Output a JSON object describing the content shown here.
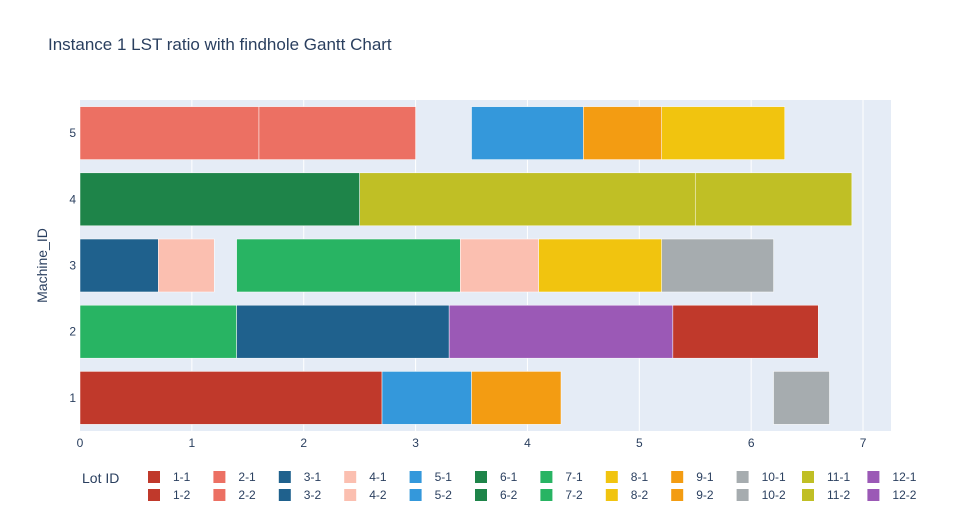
{
  "chart_data": {
    "type": "bar",
    "orientation": "horizontal",
    "title": "Instance 1 LST ratio with findhole Gantt Chart",
    "xlabel": "",
    "ylabel": "Machine_ID",
    "xlim": [
      0,
      7.25
    ],
    "x_ticks": [
      "0",
      "1",
      "2",
      "3",
      "4",
      "5",
      "6",
      "7"
    ],
    "y_categories": [
      "1",
      "2",
      "3",
      "4",
      "5"
    ],
    "grid": true,
    "legend_title": "Lot ID",
    "legend_position": "bottom",
    "colors": {
      "1": "#c0392b",
      "2": "#ec7063",
      "3": "#1f618d",
      "4": "#fbbfb0",
      "5": "#3498db",
      "6": "#1e8449",
      "7": "#28b463",
      "8": "#f1c40f",
      "9": "#f39c12",
      "10": "#a6acaf",
      "11": "#c0bf25",
      "12": "#9b59b6"
    },
    "legend": [
      "1-1",
      "1-2",
      "2-1",
      "2-2",
      "3-1",
      "3-2",
      "4-1",
      "4-2",
      "5-1",
      "5-2",
      "6-1",
      "6-2",
      "7-1",
      "7-2",
      "8-1",
      "8-2",
      "9-1",
      "9-2",
      "10-1",
      "10-2",
      "11-1",
      "11-2",
      "12-1",
      "12-2"
    ],
    "series": [
      {
        "machine": "1",
        "lot": "1-2",
        "start": 0,
        "end": 2.7
      },
      {
        "machine": "1",
        "lot": "5-1",
        "start": 2.7,
        "end": 3.5
      },
      {
        "machine": "1",
        "lot": "9-1",
        "start": 3.5,
        "end": 4.3
      },
      {
        "machine": "1",
        "lot": "10-2",
        "start": 6.2,
        "end": 6.7
      },
      {
        "machine": "2",
        "lot": "7-1",
        "start": 0,
        "end": 1.4
      },
      {
        "machine": "2",
        "lot": "3-2",
        "start": 1.4,
        "end": 3.3
      },
      {
        "machine": "2",
        "lot": "12-1",
        "start": 3.3,
        "end": 5.3
      },
      {
        "machine": "2",
        "lot": "1-1",
        "start": 5.3,
        "end": 6.6
      },
      {
        "machine": "3",
        "lot": "3-1",
        "start": 0,
        "end": 0.7
      },
      {
        "machine": "3",
        "lot": "4-1",
        "start": 0.7,
        "end": 1.2
      },
      {
        "machine": "3",
        "lot": "7-2",
        "start": 1.4,
        "end": 3.4
      },
      {
        "machine": "3",
        "lot": "4-2",
        "start": 3.4,
        "end": 4.1
      },
      {
        "machine": "3",
        "lot": "8-1",
        "start": 4.1,
        "end": 5.2
      },
      {
        "machine": "3",
        "lot": "10-1",
        "start": 5.2,
        "end": 6.2
      },
      {
        "machine": "4",
        "lot": "6-1",
        "start": 0,
        "end": 2.5
      },
      {
        "machine": "4",
        "lot": "11-1",
        "start": 2.5,
        "end": 5.5
      },
      {
        "machine": "4",
        "lot": "11-2",
        "start": 5.5,
        "end": 6.9
      },
      {
        "machine": "5",
        "lot": "2-1",
        "start": 0,
        "end": 1.6
      },
      {
        "machine": "5",
        "lot": "2-2",
        "start": 1.6,
        "end": 3.0
      },
      {
        "machine": "5",
        "lot": "5-2",
        "start": 3.5,
        "end": 4.5
      },
      {
        "machine": "5",
        "lot": "9-2",
        "start": 4.5,
        "end": 5.2
      },
      {
        "machine": "5",
        "lot": "8-2",
        "start": 5.2,
        "end": 6.3
      }
    ]
  }
}
